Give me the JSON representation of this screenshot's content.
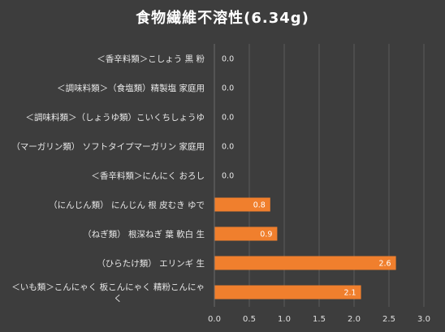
{
  "chart_data": {
    "type": "bar",
    "orientation": "horizontal",
    "title": "食物繊維不溶性(6.34g)",
    "categories": [
      "＜香辛料類＞こしょう 黒 粉",
      "＜調味料類＞（食塩類）精製塩 家庭用",
      "＜調味料類＞（しょうゆ類）こいくちしょうゆ",
      "（マーガリン類） ソフトタイプマーガリン 家庭用",
      "＜香辛料類＞にんにく おろし",
      "（にんじん類） にんじん 根 皮むき ゆで",
      "（ねぎ類） 根深ねぎ 葉 軟白 生",
      "（ひらたけ類） エリンギ 生",
      "＜いも類＞こんにゃく 板こんにゃく 精粉こんにゃく"
    ],
    "values": [
      0.0,
      0.0,
      0.0,
      0.0,
      0.0,
      0.8,
      0.9,
      2.6,
      2.1
    ],
    "value_labels": [
      "0.0",
      "0.0",
      "0.0",
      "0.0",
      "0.0",
      "0.8",
      "0.9",
      "2.6",
      "2.1"
    ],
    "xlim": [
      0,
      3.0
    ],
    "x_ticks": [
      "0.0",
      "0.5",
      "1.0",
      "1.5",
      "2.0",
      "2.5",
      "3.0"
    ],
    "grid": true,
    "legend": "none",
    "bar_color": "#f07f2d",
    "background_color": "#3d3d3d",
    "grid_color": "#5a5a5a"
  }
}
